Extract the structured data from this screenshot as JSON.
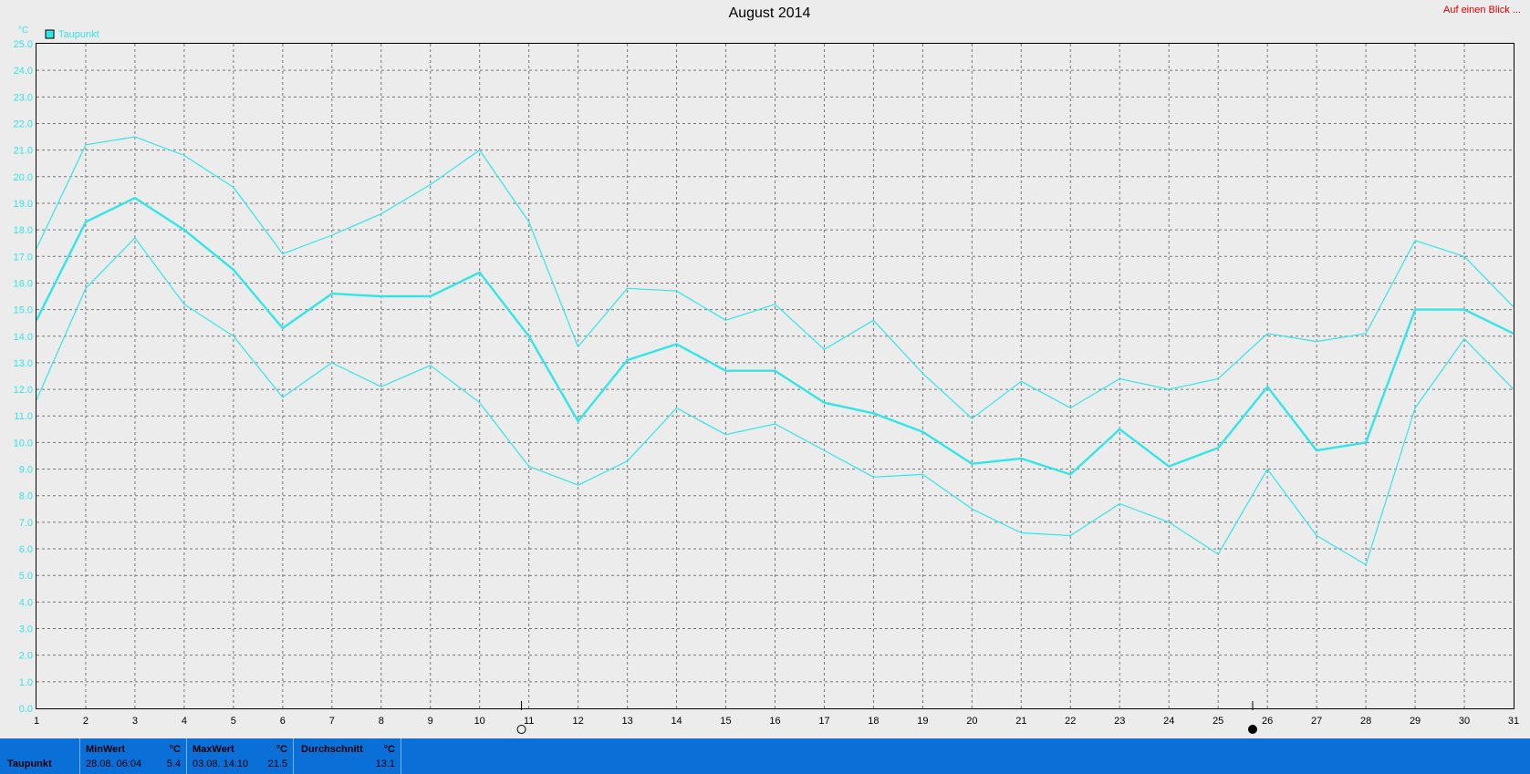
{
  "title": "August 2014",
  "corner_link": "Auf einen Blick ...",
  "legend": {
    "label": "Taupunkt",
    "color": "#33e6e6"
  },
  "unit_label": "°C",
  "chart_data": {
    "type": "line",
    "title": "August 2014",
    "ylabel": "°C",
    "ylim": [
      0.0,
      25.0
    ],
    "y_tick_step": 1.0,
    "y_ticks": [
      "0.0",
      "1.0",
      "2.0",
      "3.0",
      "4.0",
      "5.0",
      "6.0",
      "7.0",
      "8.0",
      "9.0",
      "10.0",
      "11.0",
      "12.0",
      "13.0",
      "14.0",
      "15.0",
      "16.0",
      "17.0",
      "18.0",
      "19.0",
      "20.0",
      "21.0",
      "22.0",
      "23.0",
      "24.0",
      "25.0"
    ],
    "x": [
      1,
      2,
      3,
      4,
      5,
      6,
      7,
      8,
      9,
      10,
      11,
      12,
      13,
      14,
      15,
      16,
      17,
      18,
      19,
      20,
      21,
      22,
      23,
      24,
      25,
      26,
      27,
      28,
      29,
      30,
      31
    ],
    "x_ticks": [
      "1",
      "2",
      "3",
      "4",
      "5",
      "6",
      "7",
      "8",
      "9",
      "10",
      "11",
      "12",
      "13",
      "14",
      "15",
      "16",
      "17",
      "18",
      "19",
      "20",
      "21",
      "22",
      "23",
      "24",
      "25",
      "26",
      "27",
      "28",
      "29",
      "30",
      "31"
    ],
    "grid": true,
    "legend_position": "top-left",
    "moon_markers": [
      {
        "x": 10.85,
        "phase": "full"
      },
      {
        "x": 25.7,
        "phase": "new"
      }
    ],
    "series": [
      {
        "name": "Taupunkt",
        "role": "max",
        "values": [
          17.3,
          21.2,
          21.5,
          20.8,
          19.6,
          17.1,
          17.8,
          18.6,
          19.7,
          21.0,
          18.3,
          13.6,
          15.8,
          15.7,
          14.6,
          15.2,
          13.5,
          14.6,
          12.6,
          10.9,
          12.3,
          11.3,
          12.4,
          12.0,
          12.4,
          14.1,
          13.8,
          14.1,
          17.6,
          17.0,
          15.1
        ]
      },
      {
        "name": "Taupunkt",
        "role": "mean",
        "values": [
          14.6,
          18.3,
          19.2,
          18.0,
          16.5,
          14.3,
          15.6,
          15.5,
          15.5,
          16.4,
          14.0,
          10.8,
          13.1,
          13.7,
          12.7,
          12.7,
          11.5,
          11.1,
          10.4,
          9.2,
          9.4,
          8.8,
          10.5,
          9.1,
          9.8,
          12.1,
          9.7,
          10.0,
          15.0,
          15.0,
          14.1
        ]
      },
      {
        "name": "Taupunkt",
        "role": "min",
        "values": [
          11.6,
          15.8,
          17.7,
          15.2,
          14.0,
          11.7,
          13.0,
          12.1,
          12.9,
          11.5,
          9.1,
          8.4,
          9.3,
          11.3,
          10.3,
          10.7,
          9.7,
          8.7,
          8.8,
          7.5,
          6.6,
          6.5,
          7.7,
          7.0,
          5.8,
          9.0,
          6.5,
          5.4,
          11.3,
          13.9,
          12.0
        ]
      }
    ]
  },
  "footer": {
    "row_label": "Taupunkt",
    "min": {
      "header": "MinWert",
      "unit": "°C",
      "when": "28.08.  06:04",
      "value": "5.4"
    },
    "max": {
      "header": "MaxWert",
      "unit": "°C",
      "when": "03.08.  14:10",
      "value": "21.5"
    },
    "avg": {
      "header": "Durchschnitt",
      "unit": "°C",
      "value": "13.1"
    }
  }
}
